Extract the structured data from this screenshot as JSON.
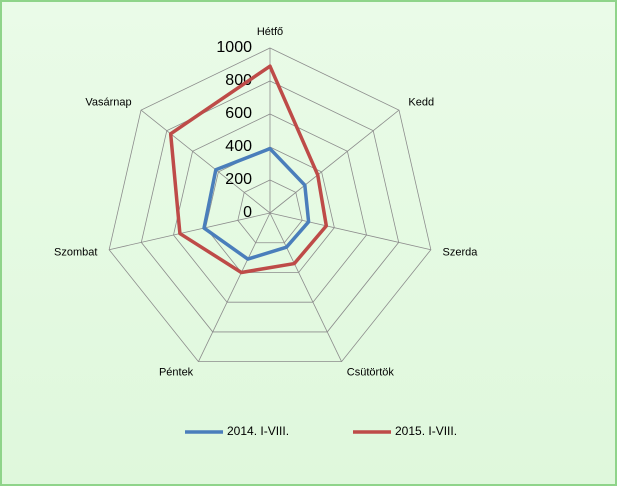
{
  "chart_data": {
    "type": "radar",
    "categories": [
      "Hétfő",
      "Kedd",
      "Szerda",
      "Csütörtök",
      "Péntek",
      "Szombat",
      "Vasárnap"
    ],
    "series": [
      {
        "name": "2014. I-VIII.",
        "color": "#4a7ebb",
        "values": [
          390,
          270,
          240,
          230,
          310,
          410,
          420
        ]
      },
      {
        "name": "2015. I-VIII.",
        "color": "#be4b48",
        "values": [
          890,
          370,
          350,
          340,
          400,
          560,
          770
        ]
      }
    ],
    "ylim": [
      0,
      1000
    ],
    "yticks": [
      0,
      200,
      400,
      600,
      800,
      1000
    ],
    "grid": true,
    "legend": "bottom"
  }
}
